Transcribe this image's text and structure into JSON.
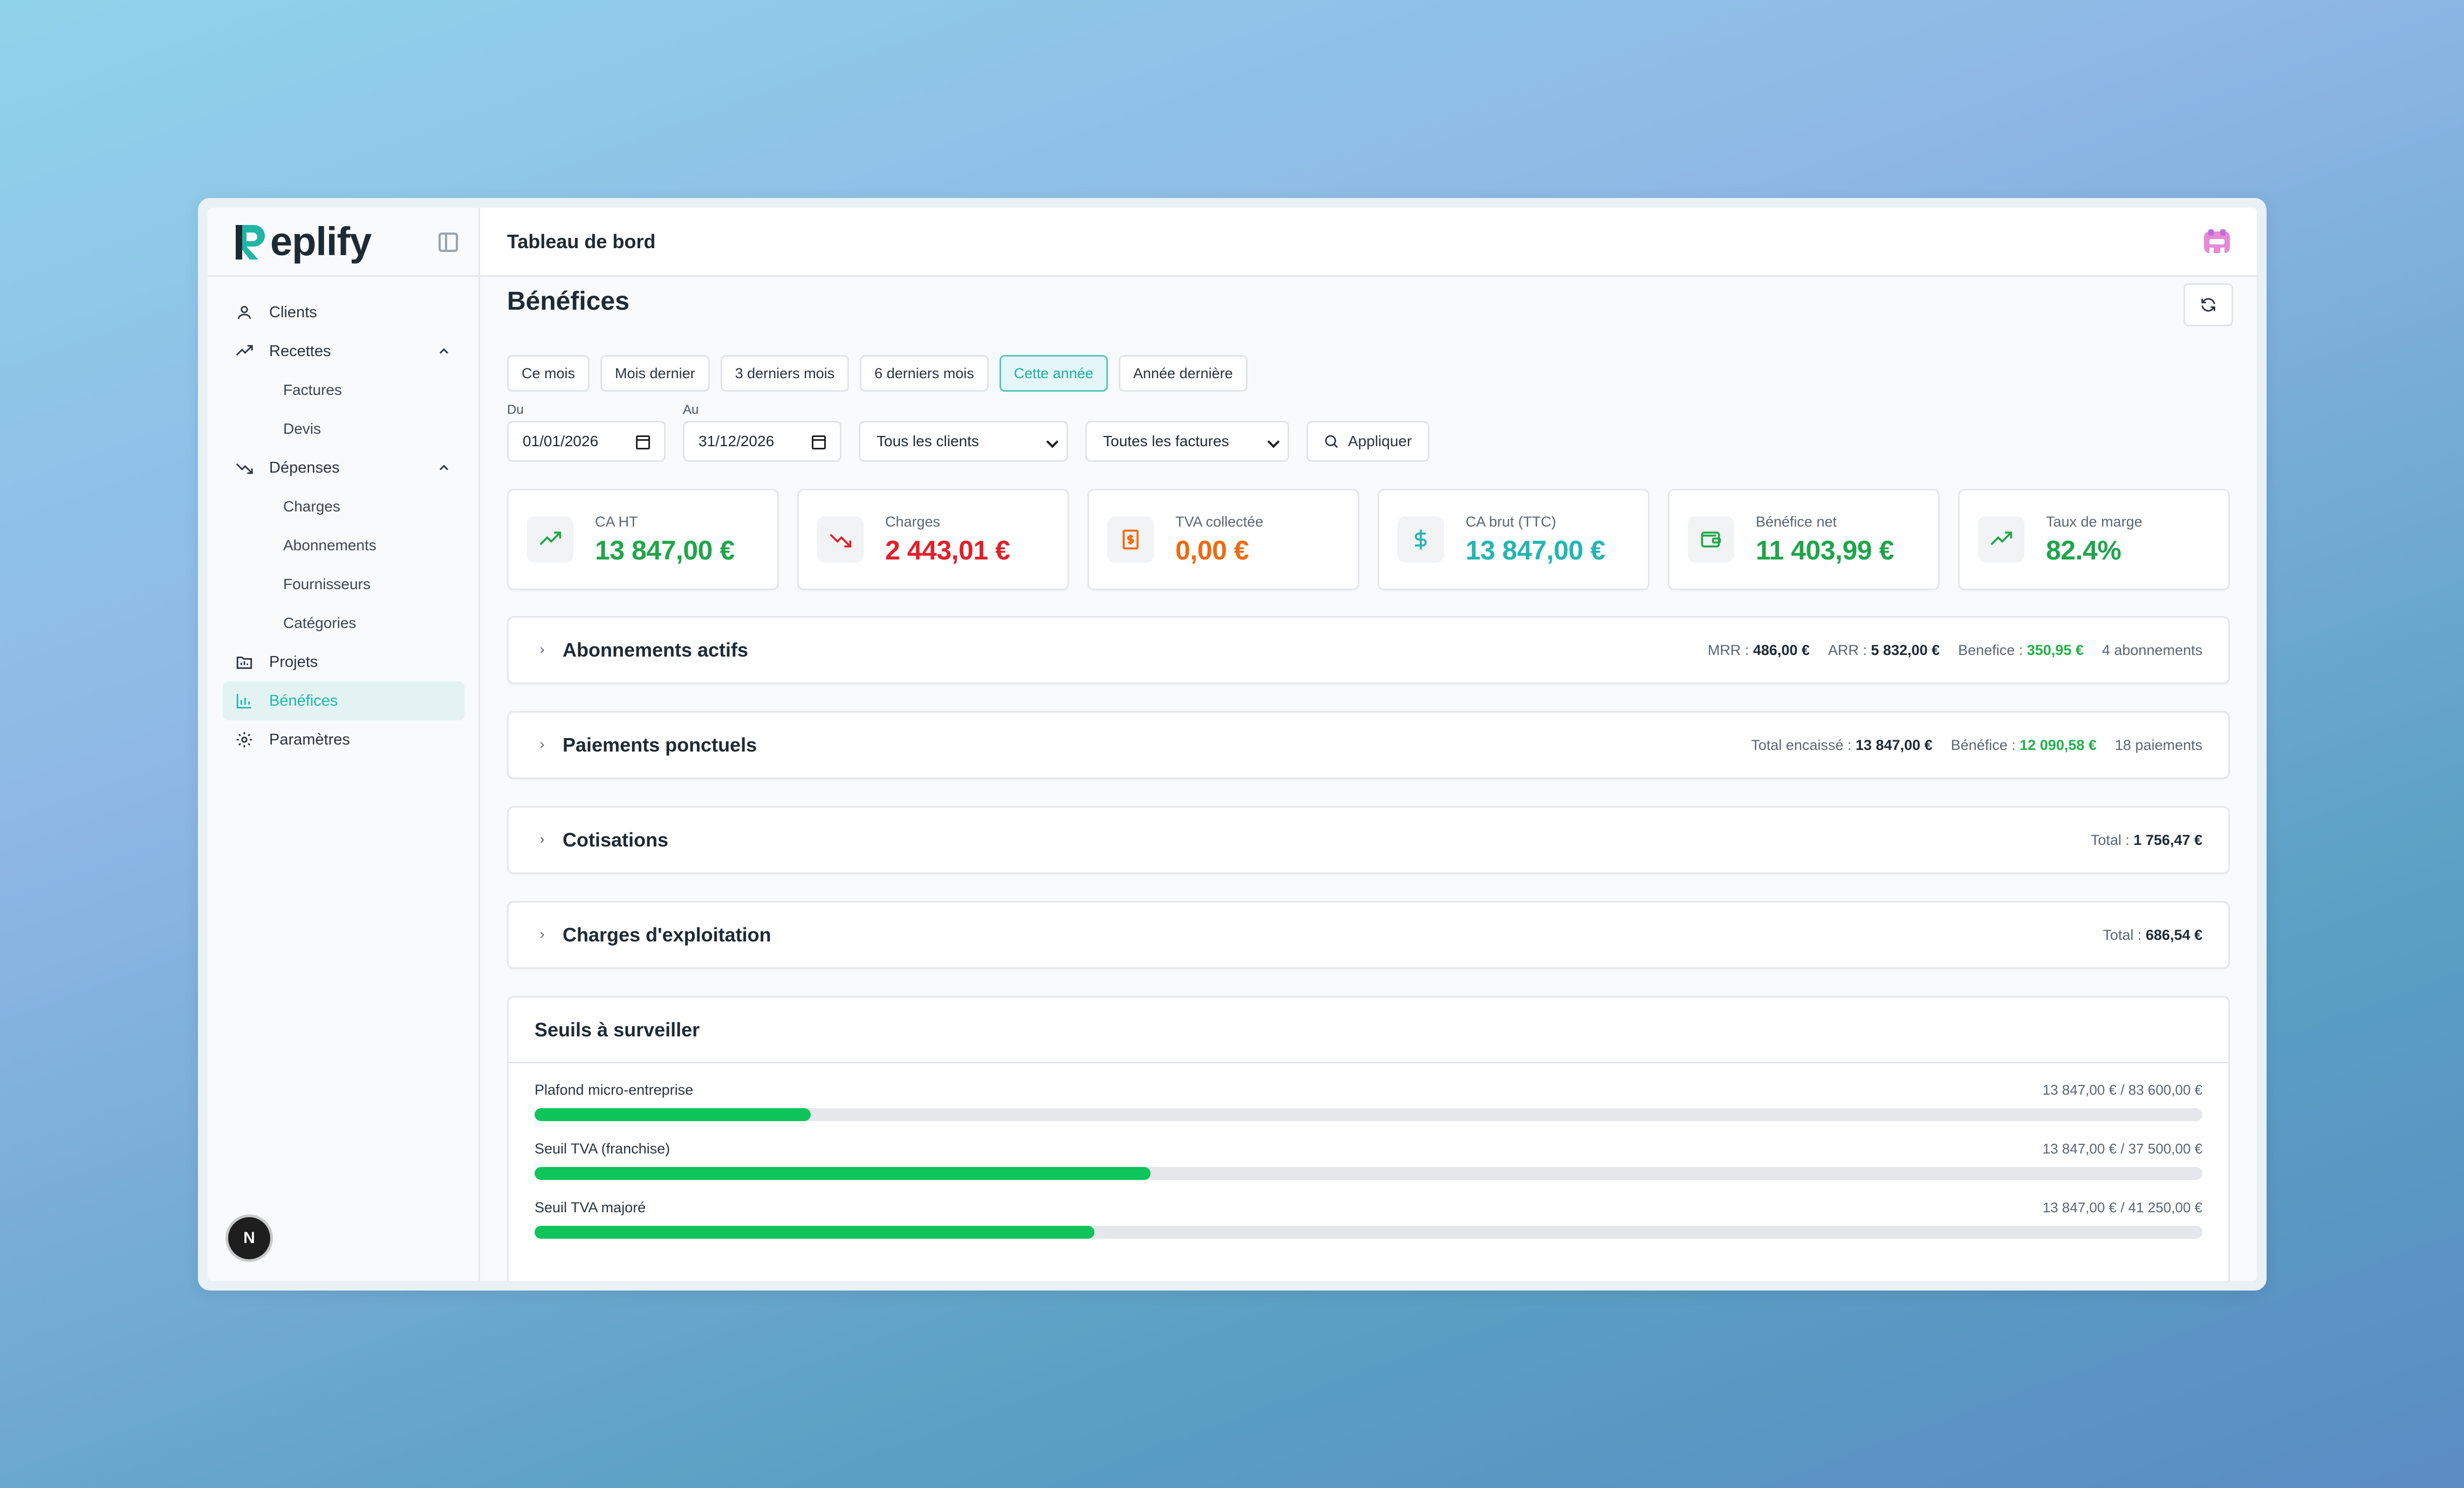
{
  "brand": {
    "name": "eplify"
  },
  "topbar": {
    "title": "Tableau de bord"
  },
  "sidebar": {
    "items": [
      {
        "label": "Clients"
      },
      {
        "label": "Recettes",
        "children": [
          "Factures",
          "Devis"
        ]
      },
      {
        "label": "Dépenses",
        "children": [
          "Charges",
          "Abonnements",
          "Fournisseurs",
          "Catégories"
        ]
      },
      {
        "label": "Projets"
      },
      {
        "label": "Bénéfices",
        "active": true
      },
      {
        "label": "Paramètres"
      }
    ],
    "avatar_letter": "N"
  },
  "page": {
    "title": "Bénéfices"
  },
  "presets": [
    "Ce mois",
    "Mois dernier",
    "3 derniers mois",
    "6 derniers mois",
    "Cette année",
    "Année dernière"
  ],
  "active_preset": "Cette année",
  "filters": {
    "from_label": "Du",
    "from_value": "01/01/2026",
    "to_label": "Au",
    "to_value": "31/12/2026",
    "clients": "Tous les clients",
    "invoices": "Toutes les factures",
    "apply": "Appliquer"
  },
  "cards": [
    {
      "label": "CA HT",
      "value": "13 847,00 €",
      "color": "#1fa54a",
      "icon": "trending-up-icon"
    },
    {
      "label": "Charges",
      "value": "2 443,01 €",
      "color": "#e0202a",
      "icon": "trending-down-icon"
    },
    {
      "label": "TVA collectée",
      "value": "0,00 €",
      "color": "#ee6a10",
      "icon": "receipt-icon"
    },
    {
      "label": "CA brut (TTC)",
      "value": "13 847,00 €",
      "color": "#23b5b2",
      "icon": "dollar-icon"
    },
    {
      "label": "Bénéfice net",
      "value": "11 403,99 €",
      "color": "#1fa54a",
      "icon": "wallet-icon"
    },
    {
      "label": "Taux de marge",
      "value": "82.4%",
      "color": "#1fa54a",
      "icon": "trending-up-icon"
    }
  ],
  "panels": {
    "abonnements": {
      "title": "Abonnements actifs",
      "mrr_label": "MRR :",
      "mrr": "486,00 €",
      "arr_label": "ARR :",
      "arr": "5 832,00 €",
      "benef_label": "Benefice :",
      "benef": "350,95 €",
      "count": "4 abonnements"
    },
    "paiements": {
      "title": "Paiements ponctuels",
      "total_label": "Total encaissé :",
      "total": "13 847,00 €",
      "benef_label": "Bénéfice :",
      "benef": "12 090,58 €",
      "count": "18 paiements"
    },
    "cotisations": {
      "title": "Cotisations",
      "total_label": "Total :",
      "total": "1 756,47 €"
    },
    "charges": {
      "title": "Charges d'exploitation",
      "total_label": "Total :",
      "total": "686,54 €"
    }
  },
  "thresholds": {
    "title": "Seuils à surveiller",
    "rows": [
      {
        "label": "Plafond micro-entreprise",
        "value": "13 847,00 € / 83 600,00 €",
        "progress": 0.1656
      },
      {
        "label": "Seuil TVA (franchise)",
        "value": "13 847,00 € / 37 500,00 €",
        "progress": 0.3693
      },
      {
        "label": "Seuil TVA majoré",
        "value": "13 847,00 € / 41 250,00 €",
        "progress": 0.3357
      }
    ]
  }
}
